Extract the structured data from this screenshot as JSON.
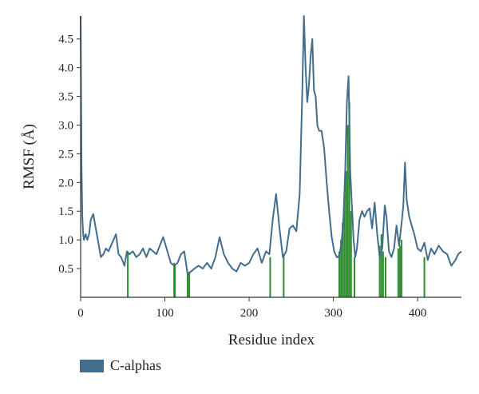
{
  "chart_data": {
    "type": "line",
    "xlabel": "Residue index",
    "ylabel": "RMSF (Å)",
    "xlim": [
      0,
      452
    ],
    "ylim": [
      0,
      4.9
    ],
    "xticks": [
      0,
      100,
      200,
      300,
      400
    ],
    "yticks": [
      0.5,
      1.0,
      1.5,
      2.0,
      2.5,
      3.0,
      3.5,
      4.0,
      4.5
    ],
    "grid": false,
    "legend_position": "bottom-left",
    "colors": {
      "series": "#436d8c",
      "markers": "#2e8b2e",
      "axis": "#333333"
    },
    "series": [
      {
        "name": "C-alphas",
        "color": "#436d8c",
        "x": [
          0,
          1,
          2,
          3,
          4,
          6,
          8,
          10,
          12,
          15,
          18,
          21,
          24,
          27,
          30,
          33,
          36,
          39,
          42,
          45,
          48,
          52,
          55,
          58,
          62,
          66,
          70,
          74,
          78,
          82,
          86,
          90,
          94,
          98,
          103,
          107,
          111,
          115,
          119,
          123,
          127,
          131,
          135,
          140,
          145,
          150,
          155,
          160,
          165,
          170,
          175,
          180,
          185,
          190,
          195,
          200,
          205,
          210,
          215,
          220,
          224,
          228,
          232,
          236,
          240,
          244,
          248,
          252,
          256,
          260,
          263,
          265,
          267,
          269,
          271,
          273,
          275,
          277,
          279,
          281,
          283,
          286,
          289,
          292,
          295,
          298,
          301,
          304,
          306,
          308,
          310,
          312,
          314,
          316,
          318,
          320,
          322,
          324,
          326,
          328,
          331,
          334,
          337,
          340,
          343,
          346,
          349,
          352,
          355,
          358,
          361,
          363,
          366,
          369,
          372,
          375,
          378,
          381,
          383,
          385,
          387,
          390,
          393,
          396,
          400,
          404,
          408,
          412,
          416,
          420,
          425,
          430,
          435,
          440,
          445,
          448,
          452
        ],
        "values": [
          4.9,
          2.3,
          1.4,
          1.1,
          1.0,
          1.1,
          1.0,
          1.1,
          1.35,
          1.45,
          1.2,
          0.95,
          0.7,
          0.75,
          0.85,
          0.8,
          0.9,
          1.0,
          1.1,
          0.75,
          0.7,
          0.55,
          0.8,
          0.75,
          0.8,
          0.7,
          0.75,
          0.85,
          0.7,
          0.85,
          0.8,
          0.75,
          0.9,
          1.05,
          0.8,
          0.6,
          0.55,
          0.6,
          0.75,
          0.8,
          0.4,
          0.45,
          0.5,
          0.55,
          0.5,
          0.6,
          0.5,
          0.7,
          1.05,
          0.75,
          0.6,
          0.5,
          0.45,
          0.6,
          0.55,
          0.6,
          0.75,
          0.85,
          0.6,
          0.8,
          0.75,
          1.35,
          1.8,
          1.2,
          0.7,
          0.8,
          1.2,
          1.25,
          1.15,
          1.8,
          3.5,
          4.9,
          4.0,
          3.4,
          3.7,
          4.2,
          4.5,
          3.6,
          3.5,
          3.0,
          2.9,
          2.9,
          2.6,
          2.0,
          1.5,
          1.05,
          0.8,
          0.7,
          0.7,
          0.8,
          1.0,
          1.4,
          2.2,
          3.4,
          3.85,
          2.2,
          1.6,
          1.0,
          0.7,
          0.85,
          1.35,
          1.5,
          1.4,
          1.5,
          1.55,
          1.2,
          1.65,
          1.1,
          0.7,
          0.85,
          1.6,
          1.4,
          0.8,
          0.7,
          0.85,
          1.25,
          0.9,
          1.3,
          1.6,
          2.35,
          1.7,
          1.4,
          1.25,
          1.1,
          0.85,
          0.8,
          0.95,
          0.65,
          0.85,
          0.75,
          0.9,
          0.8,
          0.75,
          0.55,
          0.65,
          0.75,
          0.8
        ]
      }
    ],
    "markers": {
      "x": [
        56,
        111,
        112,
        127,
        129,
        225,
        241,
        307,
        309,
        311,
        313,
        315,
        317,
        319,
        321,
        325,
        355,
        357,
        359,
        362,
        377,
        379,
        381,
        408
      ],
      "values": [
        0.8,
        0.6,
        0.55,
        0.4,
        0.45,
        0.7,
        0.75,
        0.8,
        1.0,
        1.3,
        1.8,
        2.2,
        3.0,
        3.4,
        1.5,
        0.7,
        0.9,
        1.1,
        0.8,
        0.7,
        0.85,
        0.9,
        1.0,
        0.7
      ]
    }
  }
}
